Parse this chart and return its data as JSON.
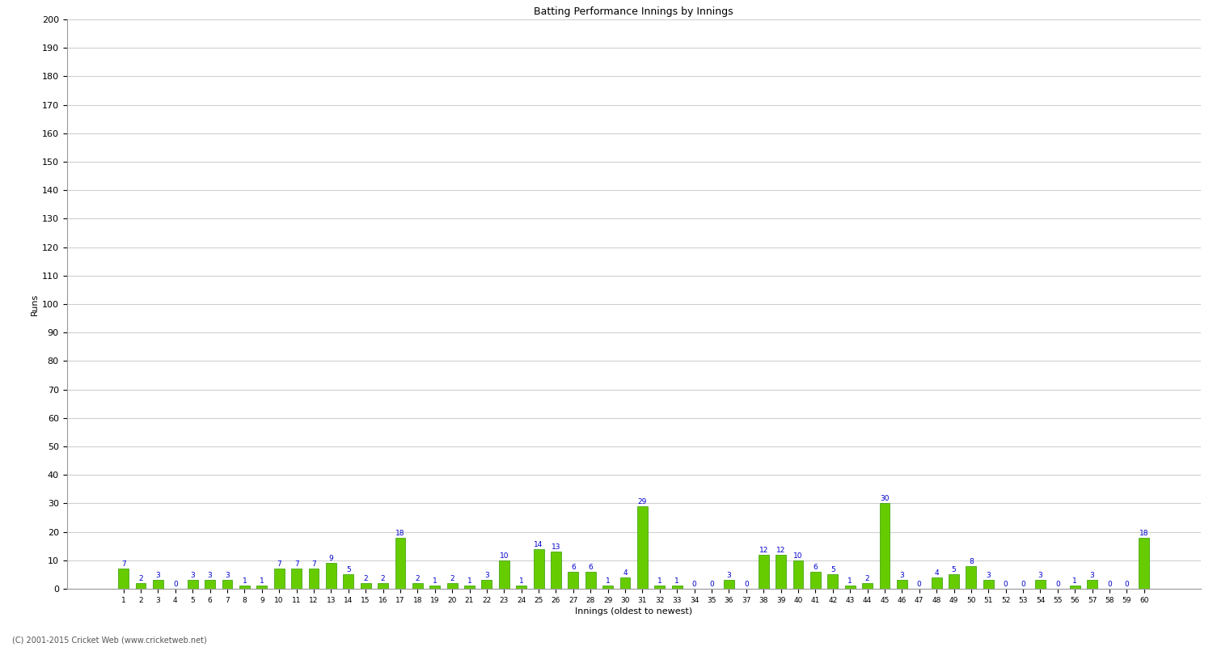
{
  "innings": [
    1,
    2,
    3,
    4,
    5,
    6,
    7,
    8,
    9,
    10,
    11,
    12,
    13,
    14,
    15,
    16,
    17,
    18,
    19,
    20,
    21,
    22,
    23,
    24,
    25,
    26,
    27,
    28,
    29,
    30,
    31,
    32,
    33,
    34,
    35,
    36,
    37,
    38,
    39,
    40,
    41,
    42,
    43,
    44,
    45,
    46,
    47,
    48,
    49,
    50,
    51,
    52,
    53,
    54,
    55,
    56,
    57,
    58,
    59,
    60
  ],
  "values": [
    7,
    2,
    3,
    0,
    3,
    3,
    3,
    1,
    1,
    7,
    7,
    7,
    9,
    5,
    2,
    2,
    18,
    2,
    1,
    2,
    1,
    3,
    10,
    1,
    14,
    13,
    6,
    6,
    1,
    4,
    29,
    1,
    1,
    0,
    0,
    3,
    0,
    12,
    12,
    10,
    6,
    5,
    1,
    2,
    30,
    3,
    0,
    4,
    5,
    8,
    3,
    0,
    0,
    3,
    0,
    1,
    3,
    0,
    0,
    18
  ],
  "bar_color": "#66cc00",
  "bar_edge_color": "#339900",
  "value_label_color": "#0000cc",
  "title": "Batting Performance Innings by Innings",
  "ylabel": "Runs",
  "xlabel": "Innings (oldest to newest)",
  "ylim": [
    0,
    200
  ],
  "yticks": [
    0,
    10,
    20,
    30,
    40,
    50,
    60,
    70,
    80,
    90,
    100,
    110,
    120,
    130,
    140,
    150,
    160,
    170,
    180,
    190,
    200
  ],
  "background_color": "#ffffff",
  "grid_color": "#d0d0d0",
  "copyright": "(C) 2001-2015 Cricket Web (www.cricketweb.net)"
}
